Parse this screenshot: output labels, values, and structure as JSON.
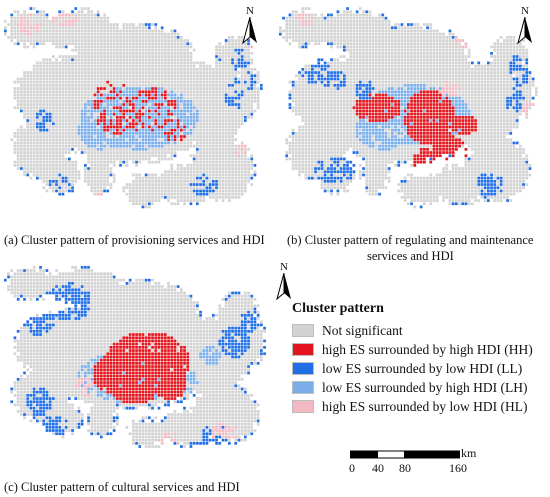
{
  "north_label": "N",
  "colors": {
    "not_significant": "#d3d3d3",
    "HH": "#e3141c",
    "LL": "#1f6ee6",
    "LH": "#7aaeea",
    "HL": "#f3b8c2",
    "grid_line": "#ffffff"
  },
  "panels": [
    {
      "id": "a",
      "caption": "(a) Cluster pattern of provisioning services and HDI"
    },
    {
      "id": "b",
      "caption_line1": "(b) Cluster pattern of regulating and maintenance",
      "caption_line2": "services and HDI"
    },
    {
      "id": "c",
      "caption": "(c) Cluster pattern of cultural services and HDI"
    }
  ],
  "legend": {
    "title": "Cluster pattern",
    "items": [
      {
        "key": "not_significant",
        "label": "Not significant"
      },
      {
        "key": "HH",
        "label": "high ES surrounded by high HDI (HH)"
      },
      {
        "key": "LL",
        "label": "low ES surrounded by low HDI (LL)"
      },
      {
        "key": "LH",
        "label": "low ES surrounded by high HDI (LH)"
      },
      {
        "key": "HL",
        "label": "high ES surrounded by low HDI (HL)"
      }
    ]
  },
  "scale": {
    "unit": "km",
    "ticks": [
      "0",
      "40",
      "80",
      "160"
    ]
  }
}
